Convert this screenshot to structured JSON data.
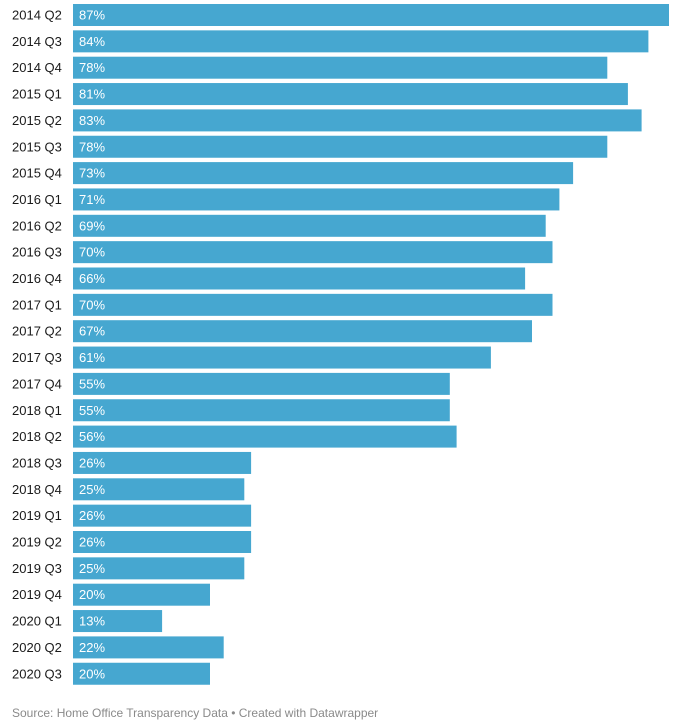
{
  "chart_data": {
    "type": "bar",
    "orientation": "horizontal",
    "categories": [
      "2014 Q2",
      "2014 Q3",
      "2014 Q4",
      "2015 Q1",
      "2015 Q2",
      "2015 Q3",
      "2015 Q4",
      "2016 Q1",
      "2016 Q2",
      "2016 Q3",
      "2016 Q4",
      "2017 Q1",
      "2017 Q2",
      "2017 Q3",
      "2017 Q4",
      "2018 Q1",
      "2018 Q2",
      "2018 Q3",
      "2018 Q4",
      "2019 Q1",
      "2019 Q2",
      "2019 Q3",
      "2019 Q4",
      "2020 Q1",
      "2020 Q2",
      "2020 Q3"
    ],
    "values": [
      87,
      84,
      78,
      81,
      83,
      78,
      73,
      71,
      69,
      70,
      66,
      70,
      67,
      61,
      55,
      55,
      56,
      26,
      25,
      26,
      26,
      25,
      20,
      13,
      22,
      20
    ],
    "value_labels": [
      "87%",
      "84%",
      "78%",
      "81%",
      "83%",
      "78%",
      "73%",
      "71%",
      "69%",
      "70%",
      "66%",
      "70%",
      "67%",
      "61%",
      "55%",
      "55%",
      "56%",
      "26%",
      "25%",
      "26%",
      "26%",
      "25%",
      "20%",
      "13%",
      "22%",
      "20%"
    ],
    "value_suffix": "%",
    "bar_color": "#46a7d0",
    "grid": false,
    "legend": "none"
  },
  "footer": {
    "source": "Source: Home Office Transparency Data",
    "separator": " • ",
    "credit": "Created with Datawrapper"
  }
}
